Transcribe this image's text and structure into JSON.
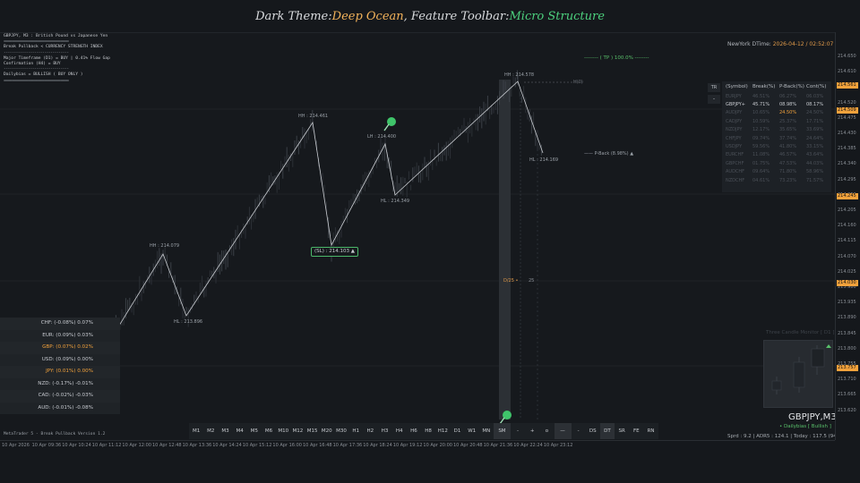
{
  "title": {
    "prefix": "Dark Theme: ",
    "theme": "Deep Ocean",
    "middle": ", Feature Toolbar: ",
    "toolbar": "Micro Structure"
  },
  "info": {
    "line1": "GBPJPY, M3 : British Pound vs Japanese Yen",
    "sep": "================================",
    "line2": "Break Pullback < CURRENCY STRENGTH INDEX",
    "sep2": "--------------------------------",
    "line3": "Major Timeframe (D1) = BUY | 0.41% Flow Gap",
    "line4": "Confirmation (H4) = BUY",
    "sep3": "--------------------------------",
    "line5": "Dailybias = BULLISH ( BUY ONLY )",
    "sep4": "================================"
  },
  "ny_time": {
    "label": "NewYork DTime: ",
    "value": "2026-04-12 / 02:52:07 PM"
  },
  "tp_label": "-------- ( TP ) 100.0% --------",
  "swings": {
    "hh1": "HH : 214.578",
    "hh2": "HH : 214.461",
    "hh3": "HH : 214.079",
    "lh": "LH : 214.400",
    "hl1": "HL : 214.349",
    "hl2": "HL : 214.169",
    "hl3": "HL : 213.896",
    "sl": "(SL) : 214.103 ▲",
    "pback": "—— P-Back (8.98%) ▲",
    "mid": "D/25 •",
    "mid2": "25",
    "hh_right": "H(0)"
  },
  "sym_panel": {
    "tr": "TR",
    "minus": "-",
    "headers": [
      "(Symbol)",
      "Break(%)",
      "P-Back(%)",
      "Cont(%)"
    ],
    "rows": [
      [
        "EURJPY",
        "46.51%",
        "06.27%",
        "06.03%"
      ],
      [
        "GBPJPY+",
        "45.71%",
        "08.98%",
        "08.17%"
      ],
      [
        "AUDJPY",
        "10.65%",
        "24.50%",
        "24.50%"
      ],
      [
        "CADJPY",
        "10.59%",
        "25.37%",
        "17.71%"
      ],
      [
        "NZDJPY",
        "12.17%",
        "35.65%",
        "33.69%"
      ],
      [
        "CHFJPY",
        "09.74%",
        "37.74%",
        "24.64%"
      ],
      [
        "USDJPY",
        "59.56%",
        "41.80%",
        "33.15%"
      ],
      [
        "EURCHF",
        "11.08%",
        "46.57%",
        "43.64%"
      ],
      [
        "GBPCHF",
        "01.75%",
        "47.53%",
        "44.03%"
      ],
      [
        "AUDCHF",
        "09.64%",
        "71.80%",
        "58.96%"
      ],
      [
        "NZDCHF",
        "04.61%",
        "73.23%",
        "71.57%"
      ]
    ]
  },
  "currencies": [
    {
      "label": "CHF: (-0.08%)  0.07%",
      "hl": false
    },
    {
      "label": "EUR: (0.09%)  0.03%",
      "hl": false
    },
    {
      "label": "GBP: (0.07%)  0.02%",
      "hl": true
    },
    {
      "label": "USD: (0.09%)  0.00%",
      "hl": false
    },
    {
      "label": "JPY: (0.01%)  0.00%",
      "hl": true
    },
    {
      "label": "NZD: (-0.17%)  -0.01%",
      "hl": false
    },
    {
      "label": "CAD: (-0.02%)  -0.03%",
      "hl": false
    },
    {
      "label": "AUD: (-0.01%)  -0.08%",
      "hl": false
    }
  ],
  "timeframes": [
    "M1",
    "M2",
    "M3",
    "M4",
    "M5",
    "M6",
    "M10",
    "M12",
    "M15",
    "M20",
    "M30",
    "H1",
    "H2",
    "H3",
    "H4",
    "H6",
    "H8",
    "H12",
    "D1",
    "W1",
    "MN",
    "SM",
    "-",
    "+",
    "o",
    "—",
    "-",
    "DS",
    "DT",
    "SR",
    "FE",
    "RN"
  ],
  "version": "MetaTrader 5 - Break Pullback Version 1.2",
  "tcm_title": "Three Candle Monitor [ D1 ]",
  "symbol_big": "GBPJPY,M3",
  "bias_line": "• Dailybias [ Bullish ]",
  "spread_line": "Sprd : 9.2 | ADR5 : 124.1 | Today : 117.5 (94.7%)",
  "price_ticks": [
    "214.650",
    "214.610",
    "214.565",
    "214.520",
    "214.475",
    "214.430",
    "214.385",
    "214.340",
    "214.295",
    "214.250",
    "214.205",
    "214.160",
    "214.115",
    "214.070",
    "214.025",
    "213.980",
    "213.935",
    "213.890",
    "213.845",
    "213.800",
    "213.755",
    "213.710",
    "213.665",
    "213.620"
  ],
  "price_tags": [
    {
      "text": "214.561",
      "color": "#f2a23c"
    },
    {
      "text": "214.509",
      "color": "#f2a23c"
    },
    {
      "text": "214.245",
      "color": "#f2a23c"
    },
    {
      "text": "214.030",
      "color": "#f2a23c"
    },
    {
      "text": "213.757",
      "color": "#f2a23c"
    }
  ],
  "time_ticks": [
    "10 Apr 2026",
    "10 Apr 09:36",
    "10 Apr 10:24",
    "10 Apr 11:12",
    "10 Apr 12:00",
    "10 Apr 12:48",
    "10 Apr 13:36",
    "10 Apr 14:24",
    "10 Apr 15:12",
    "10 Apr 16:00",
    "10 Apr 16:48",
    "10 Apr 17:36",
    "10 Apr 18:24",
    "10 Apr 19:12",
    "10 Apr 20:00",
    "10 Apr 20:48",
    "10 Apr 21:36",
    "10 Apr 22:24",
    "10 Apr 23:12"
  ],
  "colors": {
    "accent": "#f2b25a",
    "green": "#4cd07d",
    "bg": "#16191d"
  }
}
